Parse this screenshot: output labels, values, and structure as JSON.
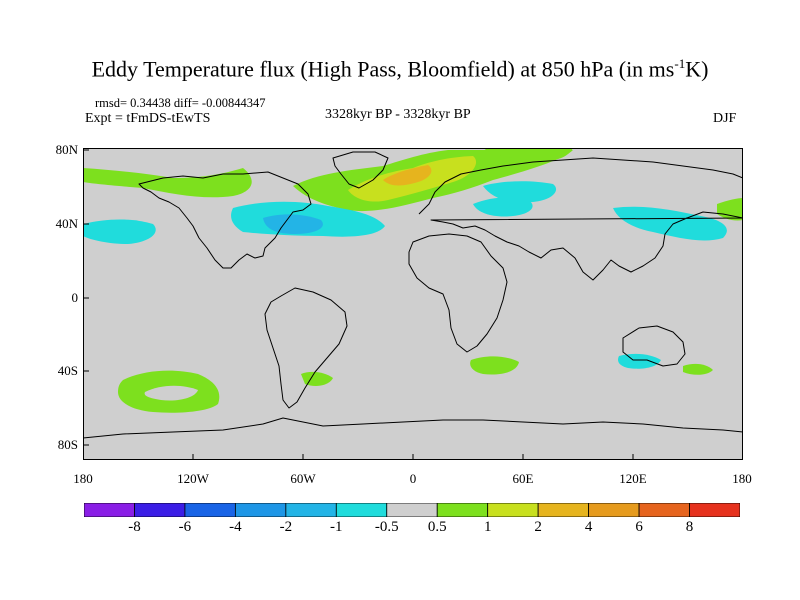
{
  "figure": {
    "title_main": "Eddy Temperature flux (High Pass, Bloomfield) at 850 hPa (in ms",
    "title_sup": "-1",
    "title_end": "K)",
    "stats_line": "rmsd= 0.34438 diff= -0.00844347",
    "expt": "Expt = tFmDS-tEwTS",
    "period": "3328kyr BP - 3328kyr BP",
    "season": "DJF"
  },
  "axes": {
    "lat_ticks": [
      "80N",
      "40N",
      "0",
      "40S",
      "80S"
    ],
    "lat_values": [
      80,
      40,
      0,
      -40,
      -80
    ],
    "lon_ticks": [
      "180",
      "120W",
      "60W",
      "0",
      "60E",
      "120E",
      "180"
    ],
    "lon_values": [
      -180,
      -120,
      -60,
      0,
      60,
      120,
      180
    ]
  },
  "colors": {
    "ocean_land_fill": "#cfcfcf",
    "coastline": "#000000",
    "levels": [
      {
        "range": "< -8",
        "color": "#8a1ee6"
      },
      {
        "range": "-8 to -6",
        "color": "#3b1ee6"
      },
      {
        "range": "-6 to -4",
        "color": "#1a64e6"
      },
      {
        "range": "-4 to -2",
        "color": "#1e96e6"
      },
      {
        "range": "-2 to -1",
        "color": "#23b4e6"
      },
      {
        "range": "-1 to -0.5",
        "color": "#20dcdc"
      },
      {
        "range": "-0.5 to 0.5",
        "color": "#cfcfcf"
      },
      {
        "range": "0.5 to 1",
        "color": "#7de01e"
      },
      {
        "range": "1 to 2",
        "color": "#c8e01e"
      },
      {
        "range": "2 to 4",
        "color": "#e6b41e"
      },
      {
        "range": "4 to 6",
        "color": "#e69b1e"
      },
      {
        "range": "6 to 8",
        "color": "#e6641e"
      },
      {
        "range": "> 8",
        "color": "#e6321e"
      }
    ]
  },
  "colorbar": {
    "labels": [
      "-8",
      "-6",
      "-4",
      "-2",
      "-1",
      "-0.5",
      "0.5",
      "1",
      "2",
      "4",
      "6",
      "8"
    ]
  }
}
